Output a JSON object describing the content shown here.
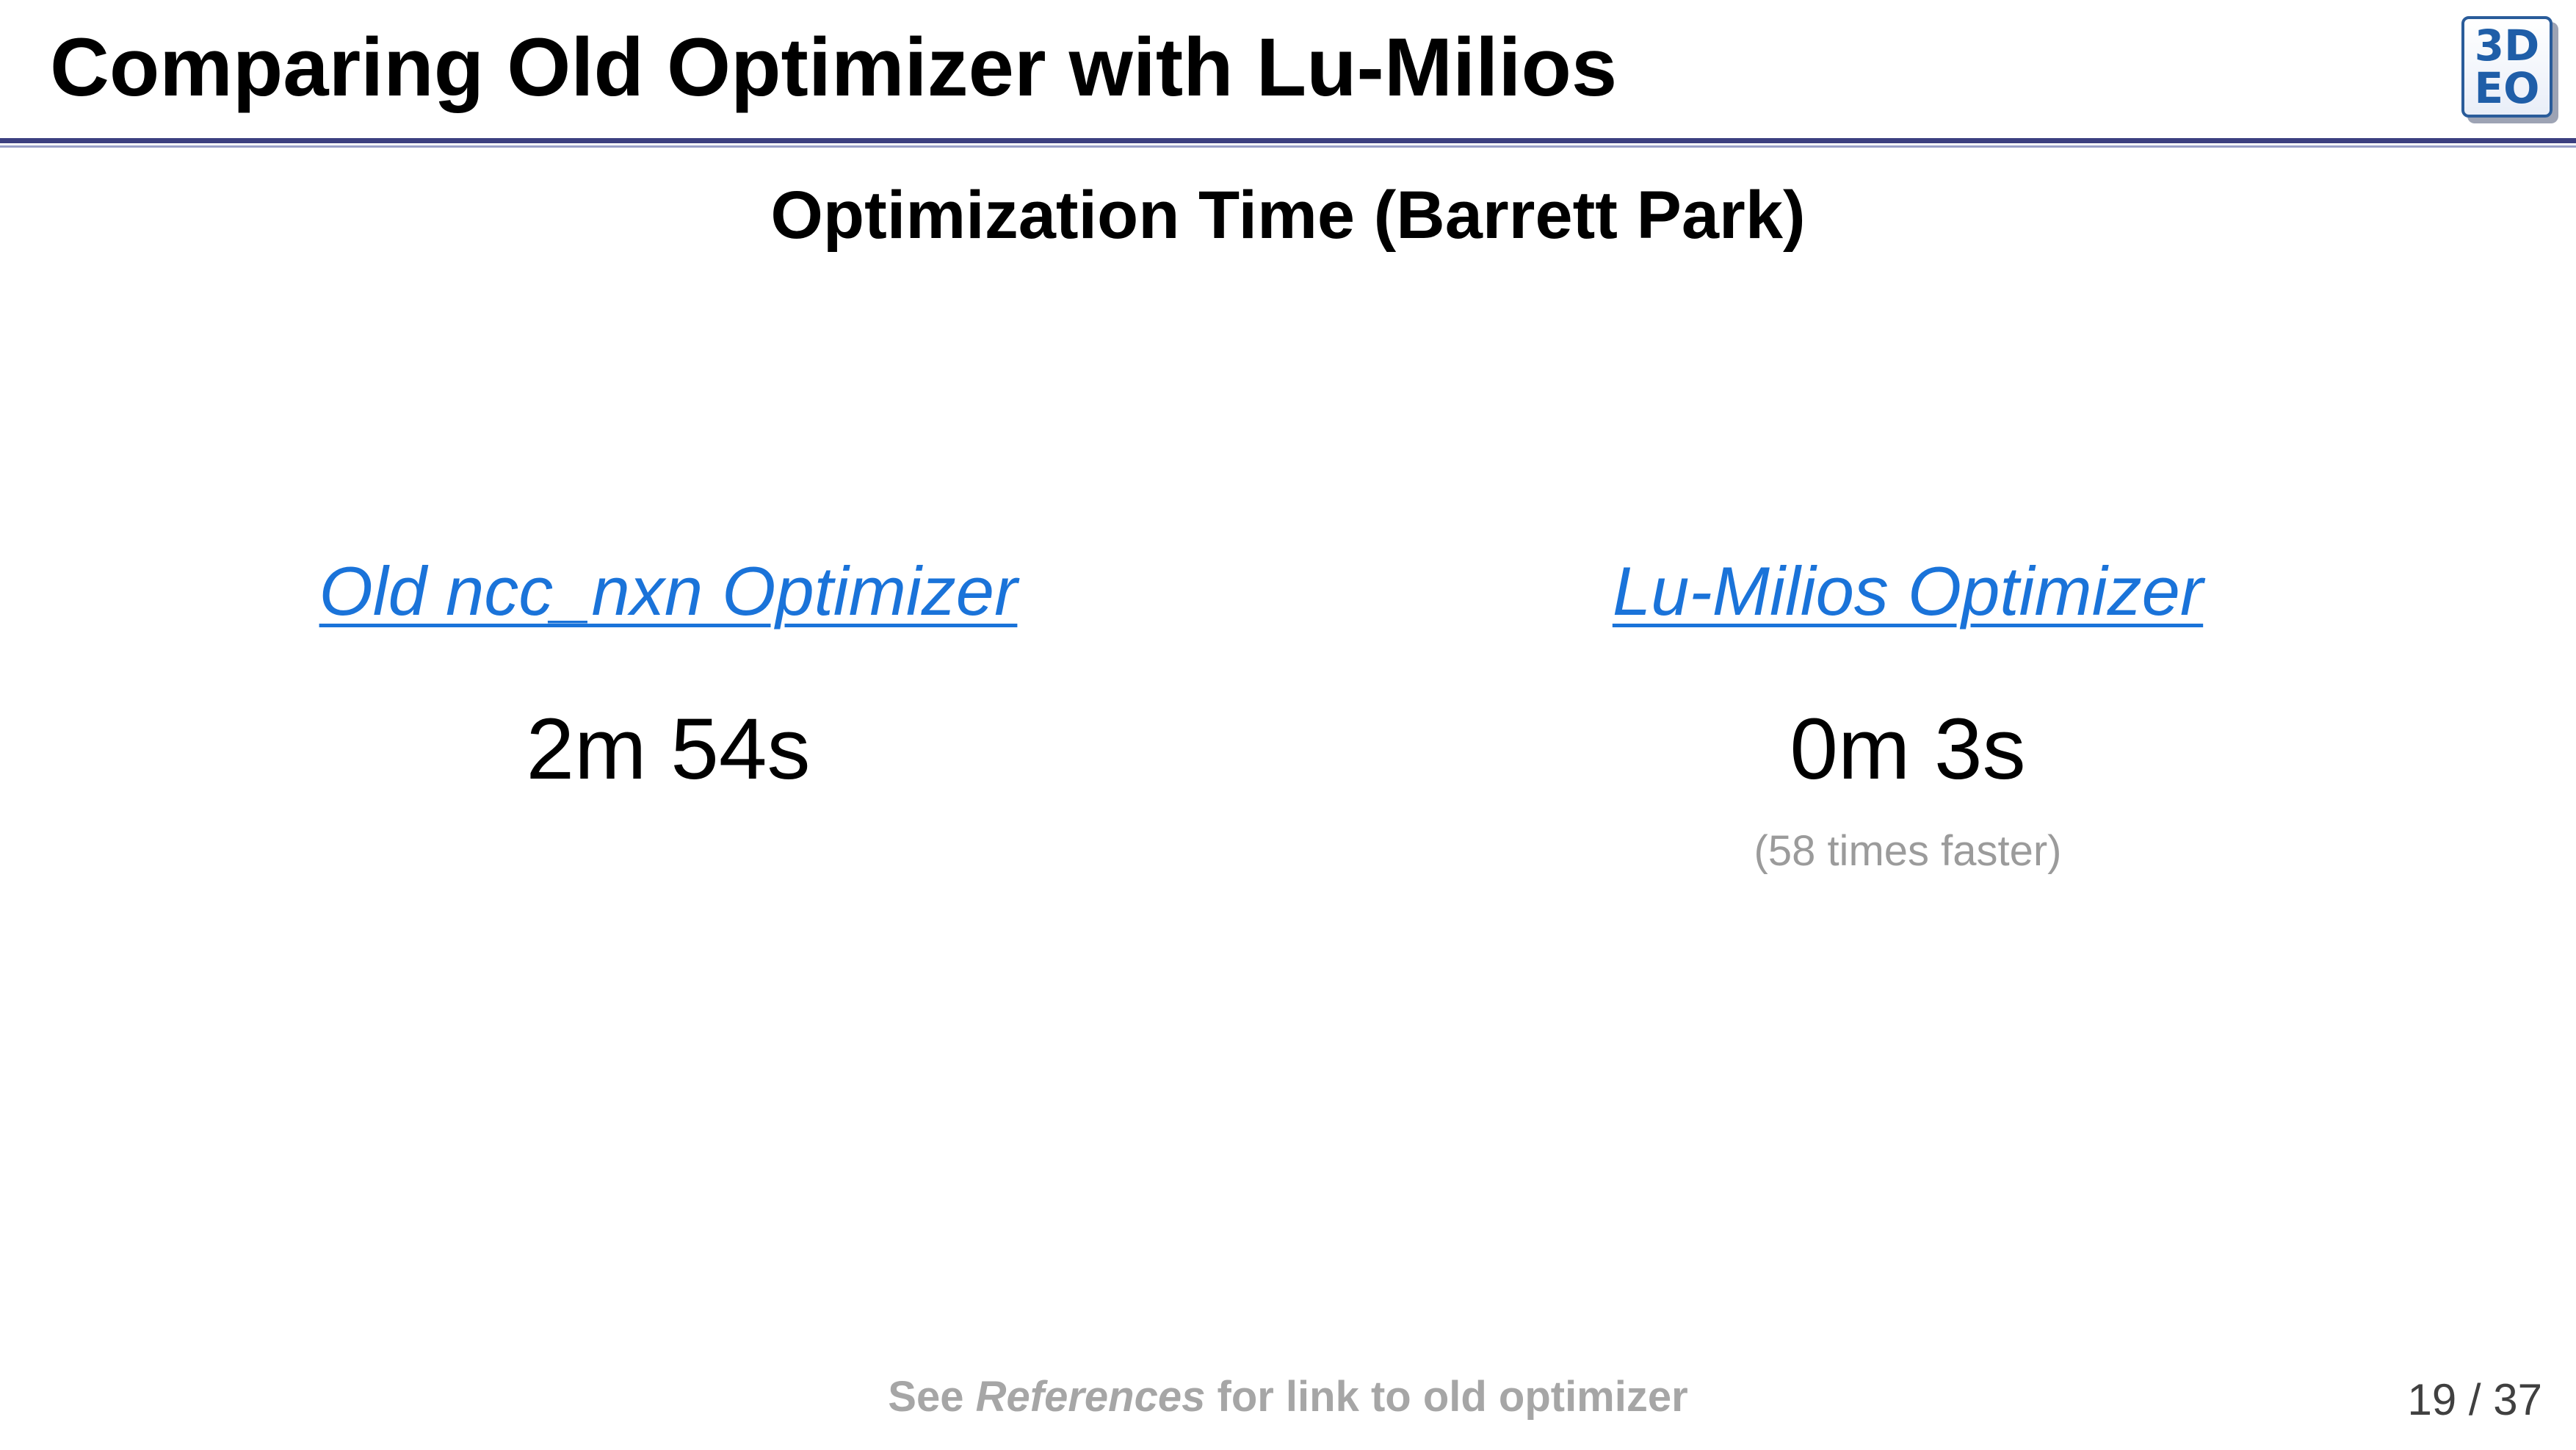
{
  "slide": {
    "title": "Comparing Old Optimizer with Lu-Milios",
    "logo": {
      "line1": "3D",
      "line2": "EO",
      "color": "#1f5ea8"
    },
    "subtitle": "Optimization Time (Barrett Park)",
    "comparisons": [
      {
        "name": "Old ncc_nxn Optimizer",
        "time": "2m 54s",
        "note": ""
      },
      {
        "name": "Lu-Milios Optimizer",
        "time": "0m 3s",
        "note": "(58 times faster)"
      }
    ],
    "footer": {
      "prefix": "See",
      "emphasis": "References",
      "suffix": "for link to old optimizer"
    },
    "page": {
      "current": "19",
      "separator": "/",
      "total": "37"
    }
  },
  "colors": {
    "link": "#1a73d9",
    "header_rule": "#3c3f80",
    "muted_text": "#9b9b9b"
  }
}
